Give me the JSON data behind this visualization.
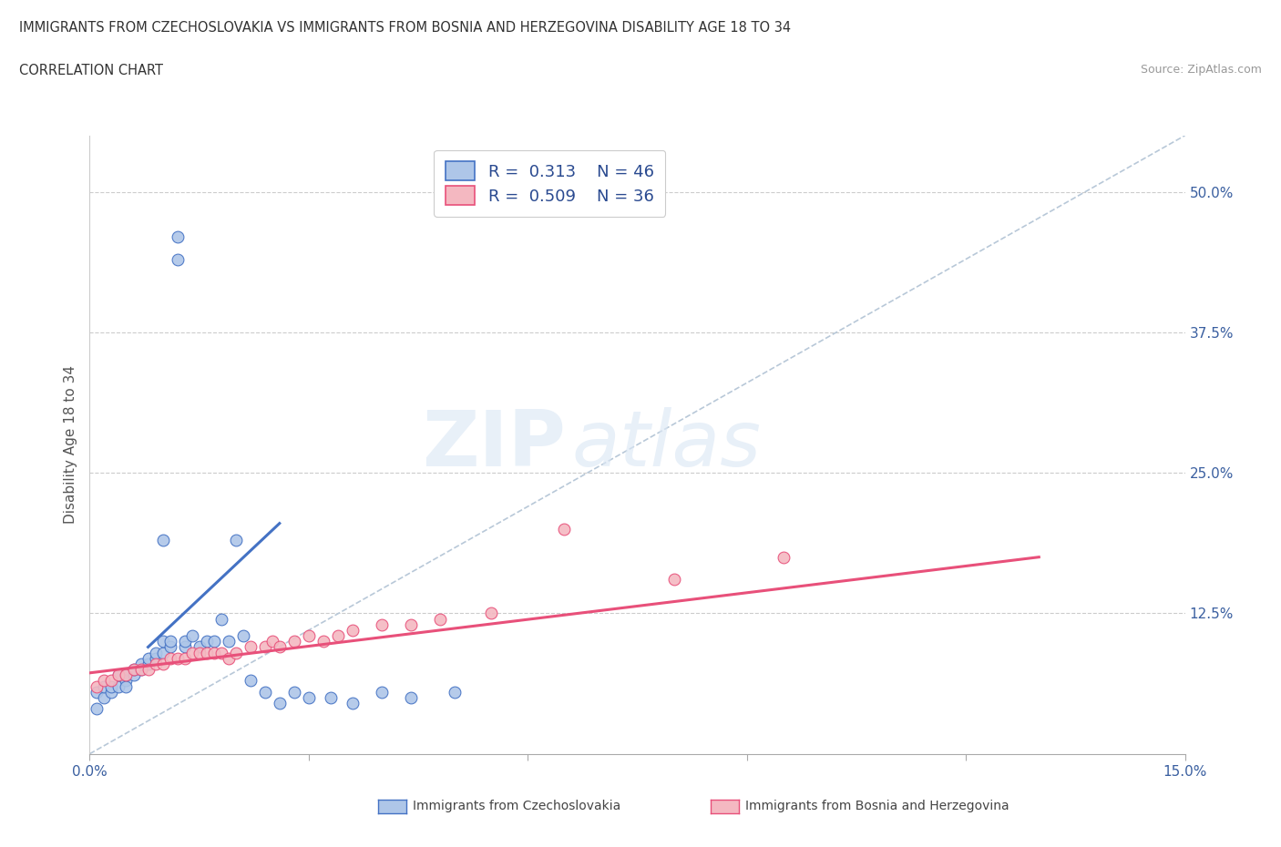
{
  "title_line1": "IMMIGRANTS FROM CZECHOSLOVAKIA VS IMMIGRANTS FROM BOSNIA AND HERZEGOVINA DISABILITY AGE 18 TO 34",
  "title_line2": "CORRELATION CHART",
  "source_text": "Source: ZipAtlas.com",
  "ylabel": "Disability Age 18 to 34",
  "xlim": [
    0.0,
    0.15
  ],
  "ylim": [
    0.0,
    0.55
  ],
  "xticks": [
    0.0,
    0.03,
    0.06,
    0.09,
    0.12,
    0.15
  ],
  "xtick_labels": [
    "0.0%",
    "",
    "",
    "",
    "",
    "15.0%"
  ],
  "ytick_labels": [
    "",
    "12.5%",
    "25.0%",
    "37.5%",
    "50.0%"
  ],
  "yticks": [
    0.0,
    0.125,
    0.25,
    0.375,
    0.5
  ],
  "color_czech": "#aec6e8",
  "color_bosnia": "#f4b8c1",
  "color_czech_line": "#4472c4",
  "color_bosnia_line": "#e8507a",
  "color_diag_line": "#b8c8d8",
  "watermark_zip": "ZIP",
  "watermark_atlas": "atlas",
  "czech_scatter_x": [
    0.001,
    0.001,
    0.002,
    0.002,
    0.003,
    0.003,
    0.004,
    0.004,
    0.005,
    0.005,
    0.005,
    0.006,
    0.006,
    0.007,
    0.007,
    0.008,
    0.008,
    0.009,
    0.009,
    0.01,
    0.01,
    0.01,
    0.011,
    0.011,
    0.012,
    0.012,
    0.013,
    0.013,
    0.014,
    0.015,
    0.016,
    0.017,
    0.018,
    0.019,
    0.02,
    0.021,
    0.022,
    0.024,
    0.026,
    0.028,
    0.03,
    0.033,
    0.036,
    0.04,
    0.044,
    0.05
  ],
  "czech_scatter_y": [
    0.04,
    0.055,
    0.05,
    0.06,
    0.055,
    0.06,
    0.06,
    0.07,
    0.065,
    0.07,
    0.06,
    0.07,
    0.075,
    0.075,
    0.08,
    0.08,
    0.085,
    0.085,
    0.09,
    0.09,
    0.1,
    0.19,
    0.095,
    0.1,
    0.44,
    0.46,
    0.095,
    0.1,
    0.105,
    0.095,
    0.1,
    0.1,
    0.12,
    0.1,
    0.19,
    0.105,
    0.065,
    0.055,
    0.045,
    0.055,
    0.05,
    0.05,
    0.045,
    0.055,
    0.05,
    0.055
  ],
  "bosnia_scatter_x": [
    0.001,
    0.002,
    0.003,
    0.004,
    0.005,
    0.006,
    0.007,
    0.008,
    0.009,
    0.01,
    0.011,
    0.012,
    0.013,
    0.014,
    0.015,
    0.016,
    0.017,
    0.018,
    0.019,
    0.02,
    0.022,
    0.024,
    0.025,
    0.026,
    0.028,
    0.03,
    0.032,
    0.034,
    0.036,
    0.04,
    0.044,
    0.048,
    0.055,
    0.065,
    0.08,
    0.095
  ],
  "bosnia_scatter_y": [
    0.06,
    0.065,
    0.065,
    0.07,
    0.07,
    0.075,
    0.075,
    0.075,
    0.08,
    0.08,
    0.085,
    0.085,
    0.085,
    0.09,
    0.09,
    0.09,
    0.09,
    0.09,
    0.085,
    0.09,
    0.095,
    0.095,
    0.1,
    0.095,
    0.1,
    0.105,
    0.1,
    0.105,
    0.11,
    0.115,
    0.115,
    0.12,
    0.125,
    0.2,
    0.155,
    0.175
  ],
  "czech_line_x": [
    0.008,
    0.026
  ],
  "czech_line_y": [
    0.095,
    0.205
  ],
  "bosnia_line_x": [
    0.0,
    0.13
  ],
  "bosnia_line_y": [
    0.072,
    0.175
  ],
  "diag_line_x": [
    0.0,
    0.15
  ],
  "diag_line_y": [
    0.0,
    0.55
  ]
}
